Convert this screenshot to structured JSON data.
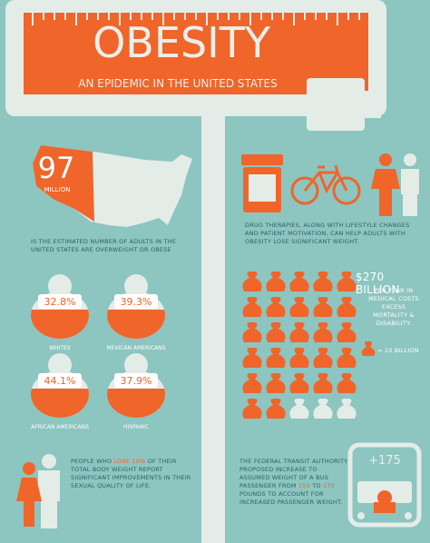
{
  "header": {
    "title": "OBESITY",
    "subtitle": "AN EPIDEMIC IN THE UNITED STATES"
  },
  "map_stat": {
    "number": "97",
    "unit": "MILLION",
    "caption": "IS THE ESTIMATED NUMBER OF ADULTS IN THE UNITED STATES ARE OVERWEIGHT OR OBESE"
  },
  "groups": [
    {
      "value": "32.8%",
      "label": "WHITES"
    },
    {
      "value": "39.3%",
      "label": "MEXICAN AMERICANS"
    },
    {
      "value": "44.1%",
      "label": "AFRICAN AMERICANS"
    },
    {
      "value": "37.9%",
      "label": "HISPANIC"
    }
  ],
  "treatment": {
    "text": "DRUG THERAPIES, ALONG WITH LIFESTYLE CHANGES AND PATIENT MOTIVATION, CAN HELP ADULTS WITH OBESITY LOSE SIGNIFICANT WEIGHT."
  },
  "costs": {
    "amount": "$270 BILLION",
    "caption": "PER YEAR IN MEDICAL COSTS EXCESS MORTALITY & DISABILITY.",
    "legend": "= 10 BILLION",
    "filled_bags": 27,
    "total_bags": 30
  },
  "weight_loss": {
    "parts": [
      "PEOPLE WHO ",
      "LOSE 10%",
      " OF THEIR TOTAL BODY WEIGHT REPORT SIGNIFICANT IMPROVEMENTS IN THEIR SEXUAL QUALITY OF LIFE."
    ]
  },
  "transit": {
    "parts": [
      "THE FEDERAL TRANSIT AUTHORITY PROPOSED INCREASE TO ASSUMED WEIGHT OF A BUS PASSENGER FROM ",
      "150",
      " TO ",
      "175",
      " POUNDS TO ACCOUNT FOR INCREASED PASSENGER WEIGHT."
    ],
    "badge": "+175"
  }
}
